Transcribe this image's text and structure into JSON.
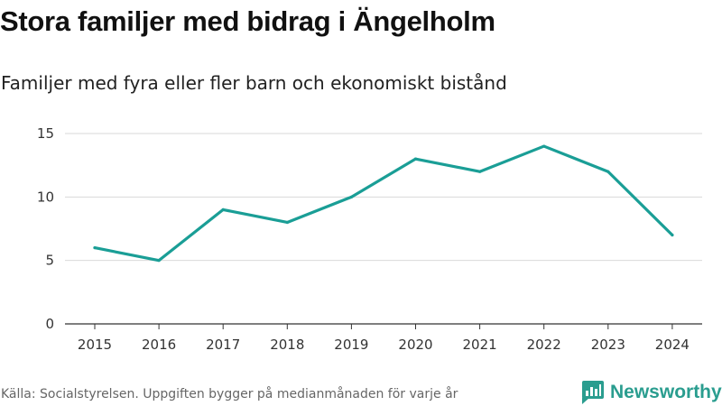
{
  "header": {
    "title": "Stora familjer med bidrag i Ängelholm",
    "subtitle": "Familjer med fyra eller fler barn och ekonomiskt bistånd"
  },
  "footer": {
    "source": "Källa: Socialstyrelsen. Uppgiften bygger på medianmånaden för varje år",
    "brand": "Newsworthy"
  },
  "colors": {
    "line": "#1a9e96",
    "grid": "#d9d9d9",
    "brand": "#2a9d8f"
  },
  "chart_data": {
    "type": "line",
    "title": "Stora familjer med bidrag i Ängelholm",
    "subtitle": "Familjer med fyra eller fler barn och ekonomiskt bistånd",
    "xlabel": "",
    "ylabel": "",
    "ylim": [
      0,
      15
    ],
    "yticks": [
      0,
      5,
      10,
      15
    ],
    "grid": true,
    "legend": "none",
    "categories": [
      "2015",
      "2016",
      "2017",
      "2018",
      "2019",
      "2020",
      "2021",
      "2022",
      "2023",
      "2024"
    ],
    "series": [
      {
        "name": "Familjer",
        "values": [
          6,
          5,
          9,
          8,
          10,
          13,
          12,
          14,
          12,
          7
        ]
      }
    ]
  }
}
